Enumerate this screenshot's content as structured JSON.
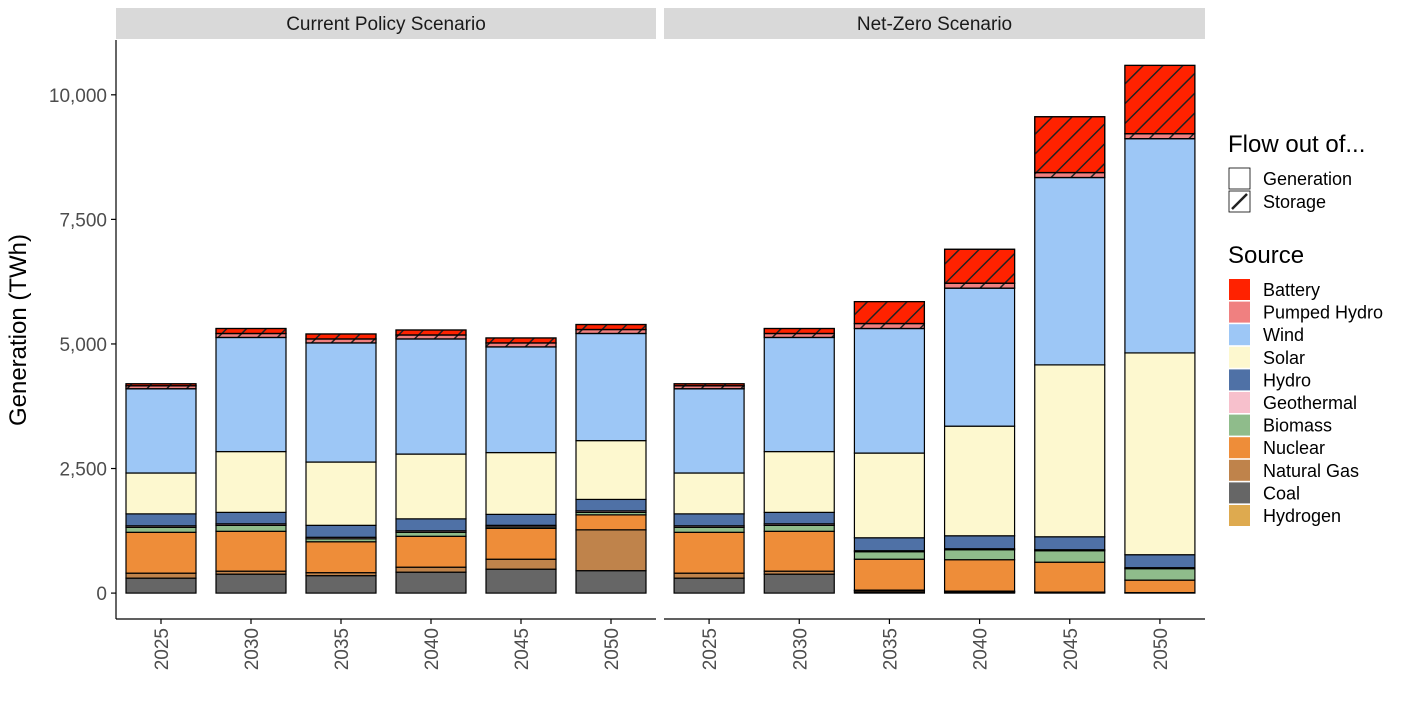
{
  "chart_data": {
    "type": "bar",
    "stacked": true,
    "ylabel": "Generation (TWh)",
    "xlabel": "",
    "ylim": [
      -520,
      11100
    ],
    "yticks": [
      0,
      2500,
      5000,
      7500,
      10000
    ],
    "ytick_labels": [
      "0",
      "2,500",
      "5,000",
      "7,500",
      "10,000"
    ],
    "categories": [
      "2025",
      "2030",
      "2035",
      "2040",
      "2045",
      "2050"
    ],
    "stack_order": [
      "Coal",
      "Natural Gas",
      "Hydrogen",
      "Nuclear",
      "Biomass",
      "Geothermal",
      "Hydro",
      "Solar",
      "Wind",
      "Pumped Hydro",
      "Battery"
    ],
    "facets": [
      {
        "name": "Current Policy Scenario",
        "series": [
          {
            "name": "Coal",
            "flow": "Generation",
            "values": [
              300,
              380,
              350,
              420,
              480,
              450
            ]
          },
          {
            "name": "Natural Gas",
            "flow": "Generation",
            "values": [
              100,
              60,
              60,
              100,
              200,
              820
            ]
          },
          {
            "name": "Hydrogen",
            "flow": "Generation",
            "values": [
              0,
              0,
              0,
              0,
              0,
              0
            ]
          },
          {
            "name": "Nuclear",
            "flow": "Generation",
            "values": [
              820,
              800,
              620,
              620,
              620,
              300
            ]
          },
          {
            "name": "Biomass",
            "flow": "Generation",
            "values": [
              100,
              120,
              60,
              80,
              30,
              50
            ]
          },
          {
            "name": "Geothermal",
            "flow": "Generation",
            "values": [
              30,
              30,
              30,
              30,
              30,
              30
            ]
          },
          {
            "name": "Hydro",
            "flow": "Generation",
            "values": [
              240,
              230,
              240,
              240,
              220,
              230
            ]
          },
          {
            "name": "Solar",
            "flow": "Generation",
            "values": [
              820,
              1220,
              1270,
              1300,
              1240,
              1180
            ]
          },
          {
            "name": "Wind",
            "flow": "Generation",
            "values": [
              1690,
              2290,
              2390,
              2310,
              2120,
              2150
            ]
          },
          {
            "name": "Pumped Hydro",
            "flow": "Storage",
            "values": [
              60,
              80,
              80,
              80,
              80,
              80
            ]
          },
          {
            "name": "Battery",
            "flow": "Storage",
            "values": [
              40,
              100,
              100,
              100,
              100,
              100
            ]
          }
        ]
      },
      {
        "name": "Net-Zero Scenario",
        "series": [
          {
            "name": "Coal",
            "flow": "Generation",
            "values": [
              300,
              380,
              20,
              10,
              0,
              0
            ]
          },
          {
            "name": "Natural Gas",
            "flow": "Generation",
            "values": [
              100,
              60,
              30,
              20,
              0,
              0
            ]
          },
          {
            "name": "Hydrogen",
            "flow": "Generation",
            "values": [
              0,
              0,
              10,
              10,
              20,
              10
            ]
          },
          {
            "name": "Nuclear",
            "flow": "Generation",
            "values": [
              820,
              800,
              620,
              630,
              600,
              250
            ]
          },
          {
            "name": "Biomass",
            "flow": "Generation",
            "values": [
              100,
              120,
              150,
              200,
              230,
              230
            ]
          },
          {
            "name": "Geothermal",
            "flow": "Generation",
            "values": [
              30,
              30,
              20,
              20,
              20,
              20
            ]
          },
          {
            "name": "Hydro",
            "flow": "Generation",
            "values": [
              240,
              230,
              260,
              260,
              260,
              260
            ]
          },
          {
            "name": "Solar",
            "flow": "Generation",
            "values": [
              820,
              1220,
              1700,
              2200,
              3450,
              4050
            ]
          },
          {
            "name": "Wind",
            "flow": "Generation",
            "values": [
              1690,
              2290,
              2500,
              2770,
              3760,
              4300
            ]
          },
          {
            "name": "Pumped Hydro",
            "flow": "Storage",
            "values": [
              60,
              80,
              100,
              100,
              100,
              100
            ]
          },
          {
            "name": "Battery",
            "flow": "Storage",
            "values": [
              40,
              100,
              440,
              680,
              1120,
              1370
            ]
          }
        ]
      }
    ],
    "legend": {
      "position": "right",
      "flow_title": "Flow out of...",
      "flow_items": [
        {
          "name": "Generation",
          "pattern": "none"
        },
        {
          "name": "Storage",
          "pattern": "stripe"
        }
      ],
      "source_title": "Source",
      "source_items": [
        {
          "name": "Battery",
          "color": "#ff2200"
        },
        {
          "name": "Pumped Hydro",
          "color": "#f08080"
        },
        {
          "name": "Wind",
          "color": "#9dc7f6"
        },
        {
          "name": "Solar",
          "color": "#fdf8cf"
        },
        {
          "name": "Hydro",
          "color": "#4f71a6"
        },
        {
          "name": "Geothermal",
          "color": "#f7c0cc"
        },
        {
          "name": "Biomass",
          "color": "#8fbc8b"
        },
        {
          "name": "Nuclear",
          "color": "#ee8d39"
        },
        {
          "name": "Natural Gas",
          "color": "#bf834b"
        },
        {
          "name": "Coal",
          "color": "#666666"
        },
        {
          "name": "Hydrogen",
          "color": "#deaa4f"
        }
      ]
    }
  }
}
